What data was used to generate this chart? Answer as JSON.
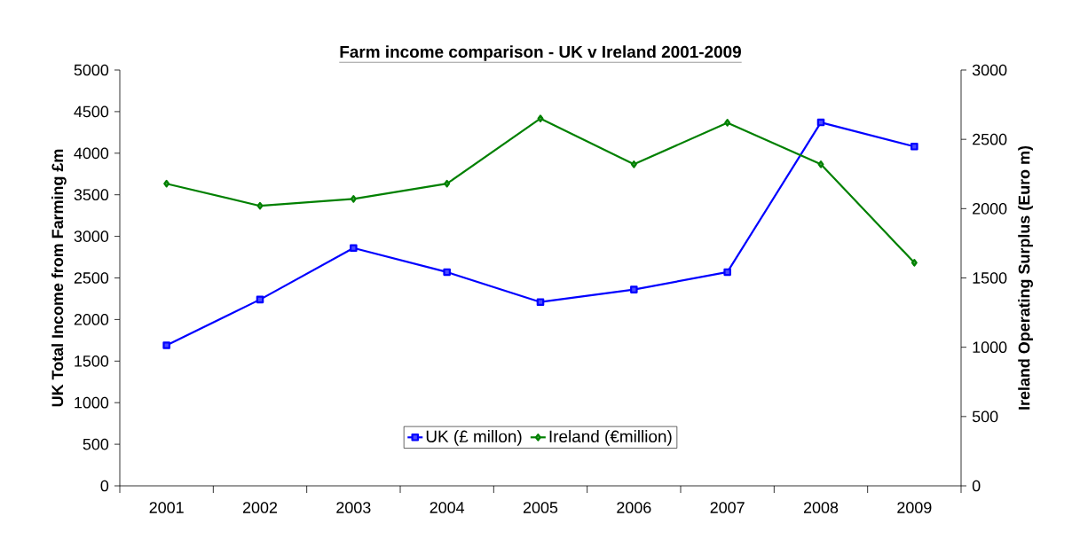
{
  "chart_data": {
    "type": "line",
    "title": "Farm income comparison - UK v Ireland 2001-2009",
    "ylabel": "UK Total Income from Farming £m",
    "y2label": "Ireland Operating Surplus (Euro m)",
    "categories": [
      "2001",
      "2002",
      "2003",
      "2004",
      "2005",
      "2006",
      "2007",
      "2008",
      "2009"
    ],
    "series": [
      {
        "name": "UK (£ millon)",
        "color": "#0000ff",
        "marker": "square",
        "values": [
          1690,
          2240,
          2860,
          2570,
          2210,
          2360,
          2570,
          4370,
          4080
        ]
      },
      {
        "name": "Ireland (€million)",
        "color": "#008000",
        "marker": "diamond",
        "axis": "y2",
        "values": [
          2180,
          2020,
          2070,
          2180,
          2650,
          2320,
          2620,
          2320,
          1610
        ]
      }
    ],
    "ylim": [
      0,
      5000
    ],
    "yticks": [
      0,
      500,
      1000,
      1500,
      2000,
      2500,
      3000,
      3500,
      4000,
      4500,
      5000
    ],
    "y2lim": [
      0,
      3000
    ],
    "y2ticks": [
      0,
      500,
      1000,
      1500,
      2000,
      2500,
      3000
    ],
    "legend": "bottom",
    "grid": false,
    "line_style": "solid"
  }
}
